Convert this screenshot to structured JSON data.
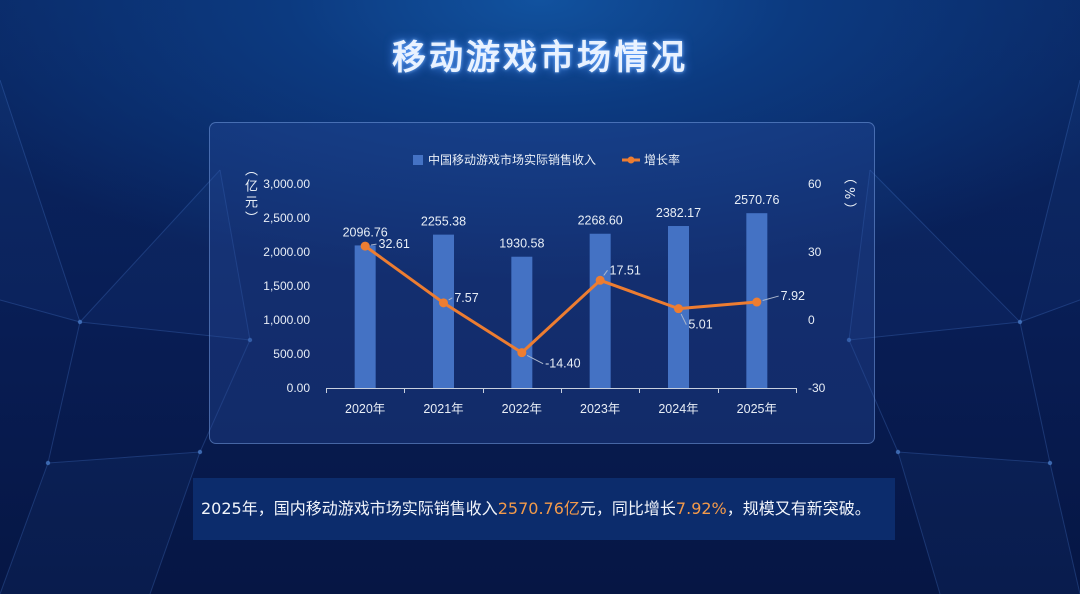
{
  "title": "移动游戏市场情况",
  "chart_data": {
    "type": "bar",
    "categories": [
      "2020年",
      "2021年",
      "2022年",
      "2023年",
      "2024年",
      "2025年"
    ],
    "series": [
      {
        "name": "中国移动游戏市场实际销售收入",
        "type": "bar",
        "axis": "left",
        "color": "#4472c4",
        "values": [
          2096.76,
          2255.38,
          1930.58,
          2268.6,
          2382.17,
          2570.76
        ],
        "labels": [
          "2096.76",
          "2255.38",
          "1930.58",
          "2268.60",
          "2382.17",
          "2570.76"
        ]
      },
      {
        "name": "增长率",
        "type": "line",
        "axis": "right",
        "color": "#ed7d31",
        "values": [
          32.61,
          7.57,
          -14.4,
          17.51,
          5.01,
          7.92
        ],
        "labels": [
          "32.61",
          "7.57",
          "-14.40",
          "17.51",
          "5.01",
          "7.92"
        ]
      }
    ],
    "left_axis": {
      "label": "（亿元）",
      "ylim": [
        0,
        3000
      ],
      "ticks": [
        0,
        500,
        1000,
        1500,
        2000,
        2500,
        3000
      ],
      "tick_labels": [
        "0.00",
        "500.00",
        "1,000.00",
        "1,500.00",
        "2,000.00",
        "2,500.00",
        "3,000.00"
      ]
    },
    "right_axis": {
      "label": "（%）",
      "ylim": [
        -30,
        60
      ],
      "ticks": [
        -30,
        0,
        30,
        60
      ],
      "tick_labels": [
        "-30",
        "0",
        "30",
        "60"
      ]
    },
    "legend": "top",
    "grid": false
  },
  "summary": {
    "lead": "2025年，国内移动游戏市场实际销售收入",
    "revenue": "2570.76亿",
    "mid": "元，同比增长",
    "growth": "7.92%",
    "tail": "，规模又有新突破。"
  }
}
